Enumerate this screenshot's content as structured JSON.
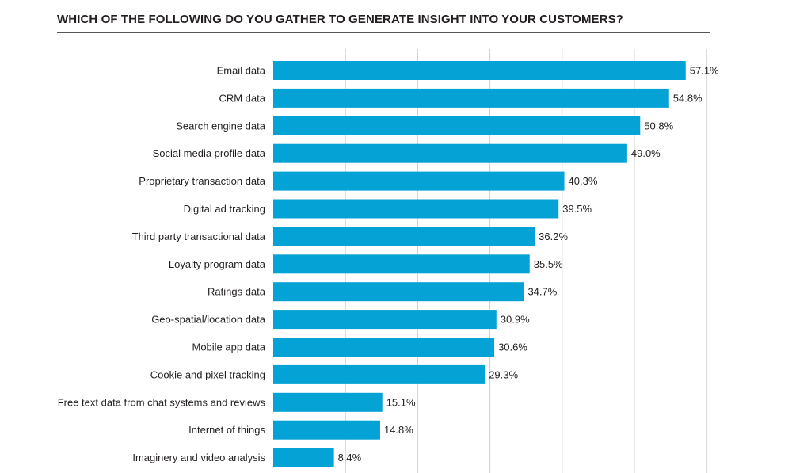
{
  "title": "WHICH OF THE FOLLOWING DO YOU GATHER TO GENERATE INSIGHT INTO YOUR CUSTOMERS?",
  "colors": {
    "bar": "#05a2d6",
    "grid": "#d0d0d0"
  },
  "chart_data": {
    "type": "bar",
    "orientation": "horizontal",
    "title": "WHICH OF THE FOLLOWING DO YOU GATHER TO GENERATE INSIGHT INTO YOUR CUSTOMERS?",
    "xlim": [
      0,
      60
    ],
    "grid": true,
    "categories": [
      "Email data",
      "CRM data",
      "Search engine data",
      "Social media profile data",
      "Proprietary transaction data",
      "Digital ad tracking",
      "Third party transactional data",
      "Loyalty program data",
      "Ratings data",
      "Geo-spatial/location data",
      "Mobile app data",
      "Cookie and pixel tracking",
      "Free text data from chat systems and reviews",
      "Internet of things",
      "Imaginery and video analysis"
    ],
    "values": [
      57.1,
      54.8,
      50.8,
      49.0,
      40.3,
      39.5,
      36.2,
      35.5,
      34.7,
      30.9,
      30.6,
      29.3,
      15.1,
      14.8,
      8.4
    ],
    "value_labels": [
      "57.1%",
      "54.8%",
      "50.8%",
      "49.0%",
      "40.3%",
      "39.5%",
      "36.2%",
      "35.5%",
      "34.7%",
      "30.9%",
      "30.6%",
      "29.3%",
      "15.1%",
      "14.8%",
      "8.4%"
    ]
  }
}
